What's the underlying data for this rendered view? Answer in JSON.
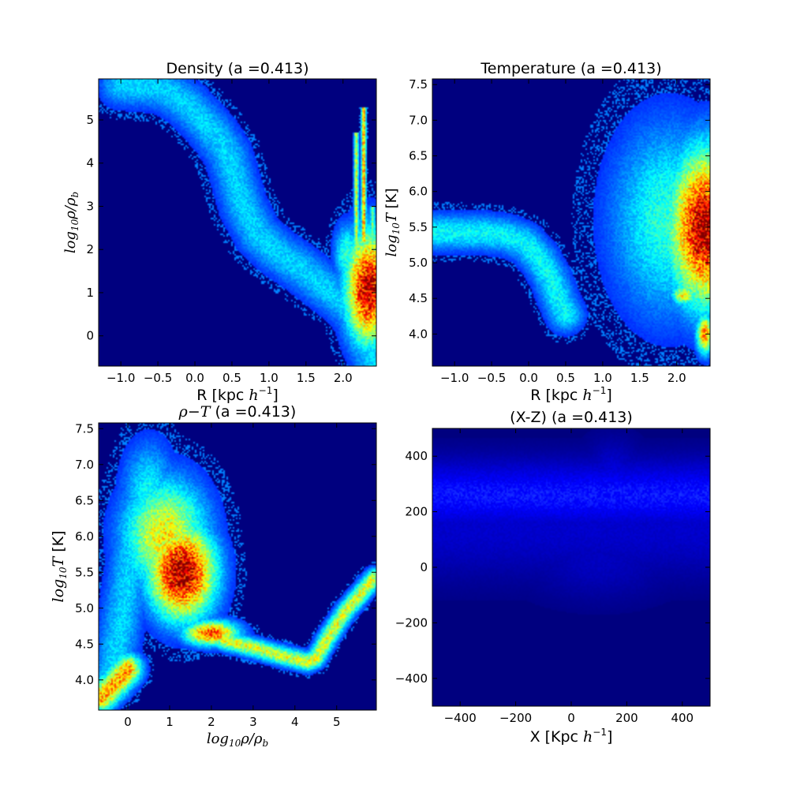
{
  "figure": {
    "background": "#ffffff",
    "plot_background": "#00007f"
  },
  "chart_data": [
    {
      "id": "density",
      "type": "heatmap",
      "title": "Density (a =0.413)",
      "xlabel": "R [kpc h⁻¹]",
      "ylabel": "log₁₀ρ/ρ_b",
      "xlim": [
        -1.3,
        2.45
      ],
      "ylim": [
        -0.7,
        5.95
      ],
      "xticks": [
        -1.0,
        -0.5,
        0.0,
        0.5,
        1.0,
        1.5,
        2.0
      ],
      "xtick_labels": [
        "−1.0",
        "−0.5",
        "0.0",
        "0.5",
        "1.0",
        "1.5",
        "2.0"
      ],
      "yticks": [
        0,
        1,
        2,
        3,
        4,
        5
      ],
      "ytick_labels": [
        "0",
        "1",
        "2",
        "3",
        "4",
        "5"
      ],
      "colormap": "jet",
      "features": [
        {
          "kind": "ridge",
          "points": [
            [
              -1.0,
              5.82
            ],
            [
              -0.5,
              5.75
            ],
            [
              -0.3,
              5.6
            ],
            [
              -0.1,
              5.35
            ],
            [
              0.1,
              5.0
            ],
            [
              0.3,
              4.6
            ],
            [
              0.45,
              4.2
            ],
            [
              0.55,
              3.6
            ],
            [
              0.65,
              3.0
            ],
            [
              0.85,
              2.35
            ],
            [
              1.1,
              1.95
            ],
            [
              1.4,
              1.6
            ],
            [
              1.7,
              1.2
            ],
            [
              2.0,
              0.8
            ],
            [
              2.3,
              0.2
            ],
            [
              2.4,
              -0.6
            ]
          ],
          "intensity": 0.25,
          "width": 0.12
        },
        {
          "kind": "blob",
          "x": 2.35,
          "y": 1.1,
          "sx": 0.22,
          "sy": 0.9,
          "intensity": 0.95
        },
        {
          "kind": "blob",
          "x": 2.05,
          "y": 1.9,
          "sx": 0.12,
          "sy": 0.5,
          "intensity": 0.35
        },
        {
          "kind": "spike",
          "x": 2.28,
          "y0": 2.2,
          "y1": 5.3,
          "intensity": 0.7
        },
        {
          "kind": "spike",
          "x": 2.18,
          "y0": 2.0,
          "y1": 4.7,
          "intensity": 0.55
        },
        {
          "kind": "spike",
          "x": 2.4,
          "y0": 1.5,
          "y1": 3.0,
          "intensity": 0.45
        }
      ]
    },
    {
      "id": "temperature",
      "type": "heatmap",
      "title": "Temperature (a =0.413)",
      "xlabel": "R [kpc h⁻¹]",
      "ylabel": "log₁₀T [K]",
      "xlim": [
        -1.3,
        2.45
      ],
      "ylim": [
        3.55,
        7.58
      ],
      "xticks": [
        -1.0,
        -0.5,
        0.0,
        0.5,
        1.0,
        1.5,
        2.0
      ],
      "xtick_labels": [
        "−1.0",
        "−0.5",
        "0.0",
        "0.5",
        "1.0",
        "1.5",
        "2.0"
      ],
      "yticks": [
        4.0,
        4.5,
        5.0,
        5.5,
        6.0,
        6.5,
        7.0,
        7.5
      ],
      "ytick_labels": [
        "4.0",
        "4.5",
        "5.0",
        "5.5",
        "6.0",
        "6.5",
        "7.0",
        "7.5"
      ],
      "colormap": "jet",
      "features": [
        {
          "kind": "ridge",
          "points": [
            [
              -1.3,
              5.43
            ],
            [
              -0.6,
              5.42
            ],
            [
              -0.3,
              5.38
            ],
            [
              -0.05,
              5.28
            ],
            [
              0.15,
              5.05
            ],
            [
              0.3,
              4.78
            ],
            [
              0.4,
              4.5
            ],
            [
              0.5,
              4.28
            ]
          ],
          "intensity": 0.3,
          "width": 0.06
        },
        {
          "kind": "blob",
          "x": 2.4,
          "y": 5.5,
          "sx": 0.35,
          "sy": 0.75,
          "intensity": 0.98
        },
        {
          "kind": "blob",
          "x": 1.9,
          "y": 5.6,
          "sx": 0.55,
          "sy": 0.95,
          "intensity": 0.35
        },
        {
          "kind": "blob",
          "x": 2.38,
          "y": 4.0,
          "sx": 0.08,
          "sy": 0.2,
          "intensity": 0.7
        },
        {
          "kind": "blob",
          "x": 2.1,
          "y": 4.55,
          "sx": 0.12,
          "sy": 0.1,
          "intensity": 0.6
        }
      ]
    },
    {
      "id": "rho-t",
      "type": "heatmap",
      "title": "ρ−T (a =0.413)",
      "xlabel": "log₁₀ρ/ρ_b",
      "ylabel": "log₁₀T [K]",
      "xlim": [
        -0.7,
        5.95
      ],
      "ylim": [
        3.58,
        7.58
      ],
      "xticks": [
        0,
        1,
        2,
        3,
        4,
        5
      ],
      "xtick_labels": [
        "0",
        "1",
        "2",
        "3",
        "4",
        "5"
      ],
      "yticks": [
        4.0,
        4.5,
        5.0,
        5.5,
        6.0,
        6.5,
        7.0,
        7.5
      ],
      "ytick_labels": [
        "4.0",
        "4.5",
        "5.0",
        "5.5",
        "6.0",
        "6.5",
        "7.0",
        "7.5"
      ],
      "colormap": "jet",
      "features": [
        {
          "kind": "blob",
          "x": 1.3,
          "y": 5.5,
          "sx": 0.55,
          "sy": 0.45,
          "intensity": 1.0
        },
        {
          "kind": "blob",
          "x": 0.9,
          "y": 6.0,
          "sx": 0.7,
          "sy": 0.55,
          "intensity": 0.6
        },
        {
          "kind": "blob",
          "x": 0.5,
          "y": 6.6,
          "sx": 0.45,
          "sy": 0.5,
          "intensity": 0.3
        },
        {
          "kind": "blob",
          "x": 2.0,
          "y": 4.65,
          "sx": 0.45,
          "sy": 0.12,
          "intensity": 0.8
        },
        {
          "kind": "ridge",
          "points": [
            [
              -0.65,
              3.75
            ],
            [
              -0.3,
              3.95
            ],
            [
              0.0,
              4.15
            ]
          ],
          "intensity": 0.7,
          "width": 0.08
        },
        {
          "kind": "ridge",
          "points": [
            [
              -0.4,
              4.0
            ],
            [
              -0.1,
              5.0
            ],
            [
              0.2,
              6.2
            ]
          ],
          "intensity": 0.25,
          "width": 0.12
        },
        {
          "kind": "ridge",
          "points": [
            [
              2.3,
              4.55
            ],
            [
              3.0,
              4.45
            ],
            [
              3.6,
              4.35
            ],
            [
              4.3,
              4.25
            ],
            [
              4.5,
              4.3
            ],
            [
              4.8,
              4.6
            ],
            [
              5.2,
              4.95
            ],
            [
              5.9,
              5.42
            ]
          ],
          "intensity": 0.55,
          "width": 0.05
        }
      ]
    },
    {
      "id": "xz",
      "type": "heatmap",
      "title": "(X-Z) (a =0.413)",
      "xlabel": "X [Kpc h⁻¹]",
      "ylabel": "",
      "xlim": [
        -500,
        500
      ],
      "ylim": [
        -500,
        500
      ],
      "xticks": [
        -400,
        -200,
        0,
        200,
        400
      ],
      "xtick_labels": [
        "−400",
        "−200",
        "0",
        "200",
        "400"
      ],
      "yticks": [
        -400,
        -200,
        0,
        200,
        400
      ],
      "ytick_labels": [
        "−400",
        "−200",
        "0",
        "200",
        "400"
      ],
      "colormap": "blue",
      "features": [
        {
          "kind": "band",
          "y_center": 260,
          "thickness": 180,
          "intensity": 0.55
        },
        {
          "kind": "band",
          "y_center": 140,
          "thickness": 260,
          "intensity": 0.3
        },
        {
          "kind": "blob",
          "x": 100,
          "y": 20,
          "sx": 200,
          "sy": 100,
          "intensity": 0.25
        },
        {
          "kind": "blob",
          "x": 150,
          "y": 330,
          "sx": 80,
          "sy": 90,
          "intensity": 0.35
        }
      ]
    }
  ]
}
